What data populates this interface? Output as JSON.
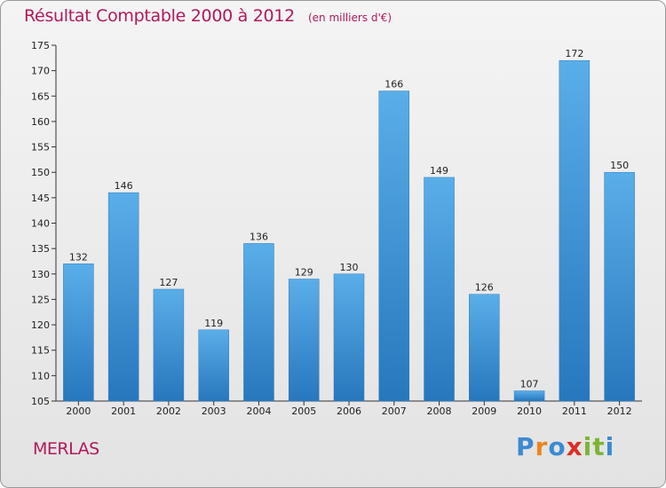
{
  "title": "Résultat Comptable 2000 à 2012",
  "unit": "(en milliers d'€)",
  "commune": "MERLAS",
  "brand": {
    "name": "Proxiti",
    "letters": [
      "P",
      "r",
      "o",
      "x",
      "i",
      "t",
      "i"
    ],
    "colors": [
      "#3b8bd2",
      "#e9861e",
      "#3b8bd2",
      "#d93025",
      "#7cb534",
      "#7cb534",
      "#3b8bd2"
    ]
  },
  "colors": {
    "bar": "#4a9fdf",
    "bar_dark": "#2a7bc0",
    "title": "#b0195a"
  },
  "chart_data": {
    "type": "bar",
    "title": "Résultat Comptable 2000 à 2012",
    "xlabel": "",
    "ylabel": "",
    "categories": [
      "2000",
      "2001",
      "2002",
      "2003",
      "2004",
      "2005",
      "2006",
      "2007",
      "2008",
      "2009",
      "2010",
      "2011",
      "2012"
    ],
    "values": [
      132,
      146,
      127,
      119,
      136,
      129,
      130,
      166,
      149,
      126,
      107,
      172,
      150
    ],
    "ylim": [
      105,
      175
    ],
    "yticks": [
      105,
      110,
      115,
      120,
      125,
      130,
      135,
      140,
      145,
      150,
      155,
      160,
      165,
      170,
      175
    ],
    "grid": false
  }
}
